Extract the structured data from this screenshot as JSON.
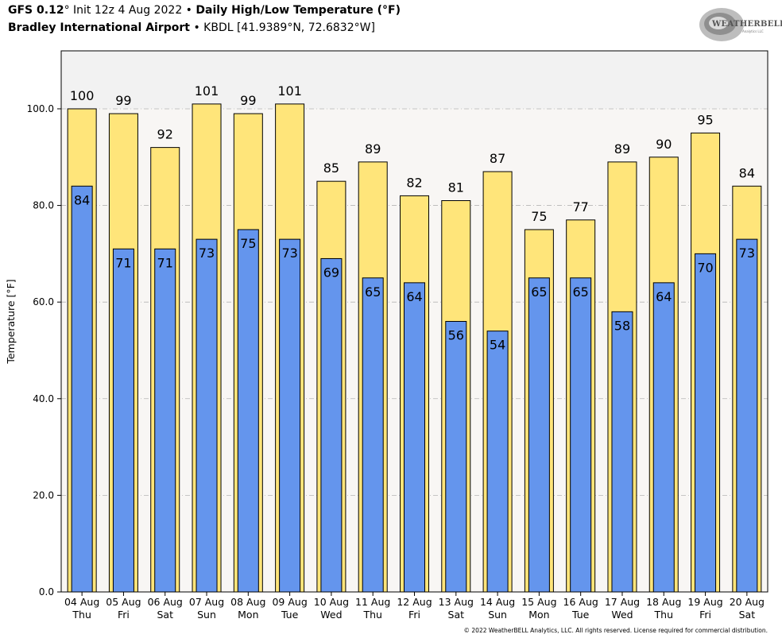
{
  "header": {
    "model": "GFS 0.12",
    "deg": "°",
    "init": " Init 12z 4 Aug 2022",
    "bullet": " • ",
    "product": "Daily High/Low Temperature (°F)",
    "station": "Bradley International Airport",
    "station_rest": " • KBDL [41.9389°N, 72.6832°W]"
  },
  "logo": {
    "text": "WEATHERBELL",
    "sub": "Analytics LLC"
  },
  "footer": "© 2022 WeatherBELL Analytics, LLC. All rights reserved. License required for commercial distribution.",
  "chart_data": {
    "type": "bar",
    "ylabel": "Temperature [°F]",
    "ylim": [
      0,
      112
    ],
    "yticks": [
      0,
      20,
      40,
      60,
      80,
      100
    ],
    "ytick_labels": [
      "0.0",
      "20.0",
      "40.0",
      "60.0",
      "80.0",
      "100.0"
    ],
    "grid": true,
    "categories": [
      {
        "date": "04 Aug",
        "day": "Thu"
      },
      {
        "date": "05 Aug",
        "day": "Fri"
      },
      {
        "date": "06 Aug",
        "day": "Sat"
      },
      {
        "date": "07 Aug",
        "day": "Sun"
      },
      {
        "date": "08 Aug",
        "day": "Mon"
      },
      {
        "date": "09 Aug",
        "day": "Tue"
      },
      {
        "date": "10 Aug",
        "day": "Wed"
      },
      {
        "date": "11 Aug",
        "day": "Thu"
      },
      {
        "date": "12 Aug",
        "day": "Fri"
      },
      {
        "date": "13 Aug",
        "day": "Sat"
      },
      {
        "date": "14 Aug",
        "day": "Sun"
      },
      {
        "date": "15 Aug",
        "day": "Mon"
      },
      {
        "date": "16 Aug",
        "day": "Tue"
      },
      {
        "date": "17 Aug",
        "day": "Wed"
      },
      {
        "date": "18 Aug",
        "day": "Thu"
      },
      {
        "date": "19 Aug",
        "day": "Fri"
      },
      {
        "date": "20 Aug",
        "day": "Sat"
      }
    ],
    "series": [
      {
        "key": "high",
        "color": "#ffe57a",
        "values": [
          100,
          99,
          92,
          101,
          99,
          101,
          85,
          89,
          82,
          81,
          87,
          75,
          77,
          89,
          90,
          95,
          84
        ],
        "labels": [
          "100",
          "99",
          "92",
          "101",
          "99",
          "101",
          "85",
          "89",
          "82",
          "81",
          "87",
          "75",
          "77",
          "89",
          "90",
          "95",
          "84"
        ]
      },
      {
        "key": "low",
        "color": "#6495ed",
        "values": [
          84,
          71,
          71,
          73,
          75,
          73,
          69,
          65,
          64,
          56,
          54,
          65,
          65,
          58,
          64,
          70,
          73
        ],
        "labels": [
          "84",
          "71",
          "71",
          "73",
          "75",
          "73",
          "69",
          "65",
          "64",
          "56",
          "54",
          "65",
          "65",
          "58",
          "64",
          "70",
          "73"
        ]
      }
    ],
    "background_colors": {
      "plot": "#f8f6f4",
      "above_100": "#f2f2f2"
    }
  }
}
